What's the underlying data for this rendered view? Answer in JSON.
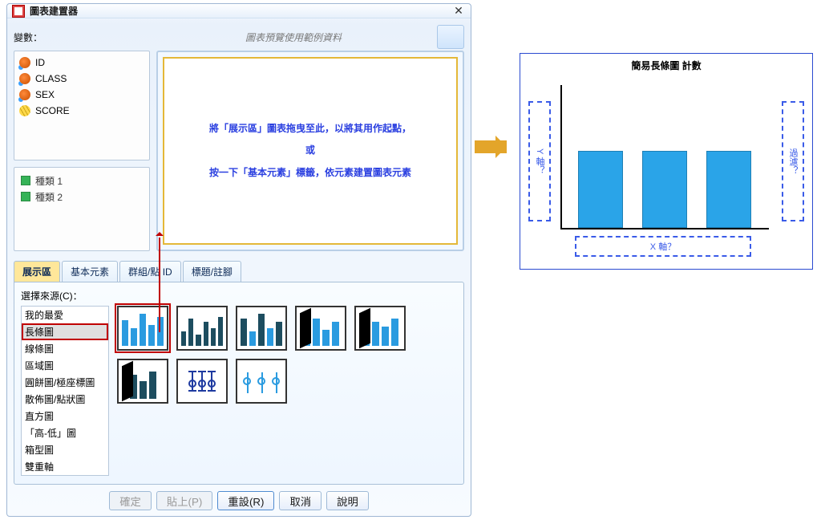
{
  "dialog": {
    "title": "圖表建置器",
    "variables_label": "變數：",
    "preview_hint": "圖表預覽使用範例資料"
  },
  "variables": [
    {
      "name": "ID",
      "icon": "nominal"
    },
    {
      "name": "CLASS",
      "icon": "nominal"
    },
    {
      "name": "SEX",
      "icon": "nominal"
    },
    {
      "name": "SCORE",
      "icon": "ruler"
    }
  ],
  "categories": [
    {
      "label": "種類 1"
    },
    {
      "label": "種類 2"
    }
  ],
  "canvas": {
    "line1": "將「展示區」圖表拖曳至此，以將其用作起點，",
    "line2": "或",
    "line3": "按一下「基本元素」標籤，依元素建置圖表元素"
  },
  "tabs": {
    "t0": "展示區",
    "t1": "基本元素",
    "t2": "群組/點 ID",
    "t3": "標題/註腳"
  },
  "source": {
    "label": "選擇來源(C)：",
    "options": [
      "我的最愛",
      "長條圖",
      "線條圖",
      "區域圖",
      "圓餅圖/極座標圖",
      "散佈圖/點狀圖",
      "直方圖",
      "「高-低」圖",
      "箱型圖",
      "雙重軸"
    ],
    "selected_index": 1
  },
  "gallery_styles": {
    "selected": 0,
    "thumb_border": "#333333",
    "sel_color": "#c00000",
    "bar_color": "#2a9be0",
    "dark_color": "#1d4d5f"
  },
  "gallery": [
    {
      "kind": "bar",
      "heights": [
        32,
        22,
        40,
        26,
        36
      ]
    },
    {
      "kind": "bar-dark",
      "heights": [
        18,
        34,
        14,
        30,
        22,
        36
      ]
    },
    {
      "kind": "bar-mix",
      "heights": [
        34,
        18,
        40,
        22,
        30
      ]
    },
    {
      "kind": "3d",
      "heights": [
        26,
        34,
        20,
        30
      ]
    },
    {
      "kind": "3d",
      "heights": [
        20,
        30,
        24,
        34
      ]
    },
    {
      "kind": "3d-dark",
      "heights": [
        30,
        22,
        34
      ]
    },
    {
      "kind": "err",
      "n": 3
    },
    {
      "kind": "clus",
      "n": 3
    }
  ],
  "buttons": {
    "ok": "確定",
    "paste": "貼上(P)",
    "reset": "重設(R)",
    "cancel": "取消",
    "help": "說明"
  },
  "preview": {
    "title": "簡易長條圖 計數",
    "y_label": "Y 軸？",
    "x_label": "X 軸？",
    "filter_label": "過濾？",
    "bars": {
      "count": 3,
      "color": "#2aa4e8",
      "heights": [
        96,
        96,
        96
      ],
      "positions": [
        20,
        100,
        180
      ],
      "width": 56
    },
    "axis_color": "#000000",
    "dash_color": "#3a5be8"
  }
}
